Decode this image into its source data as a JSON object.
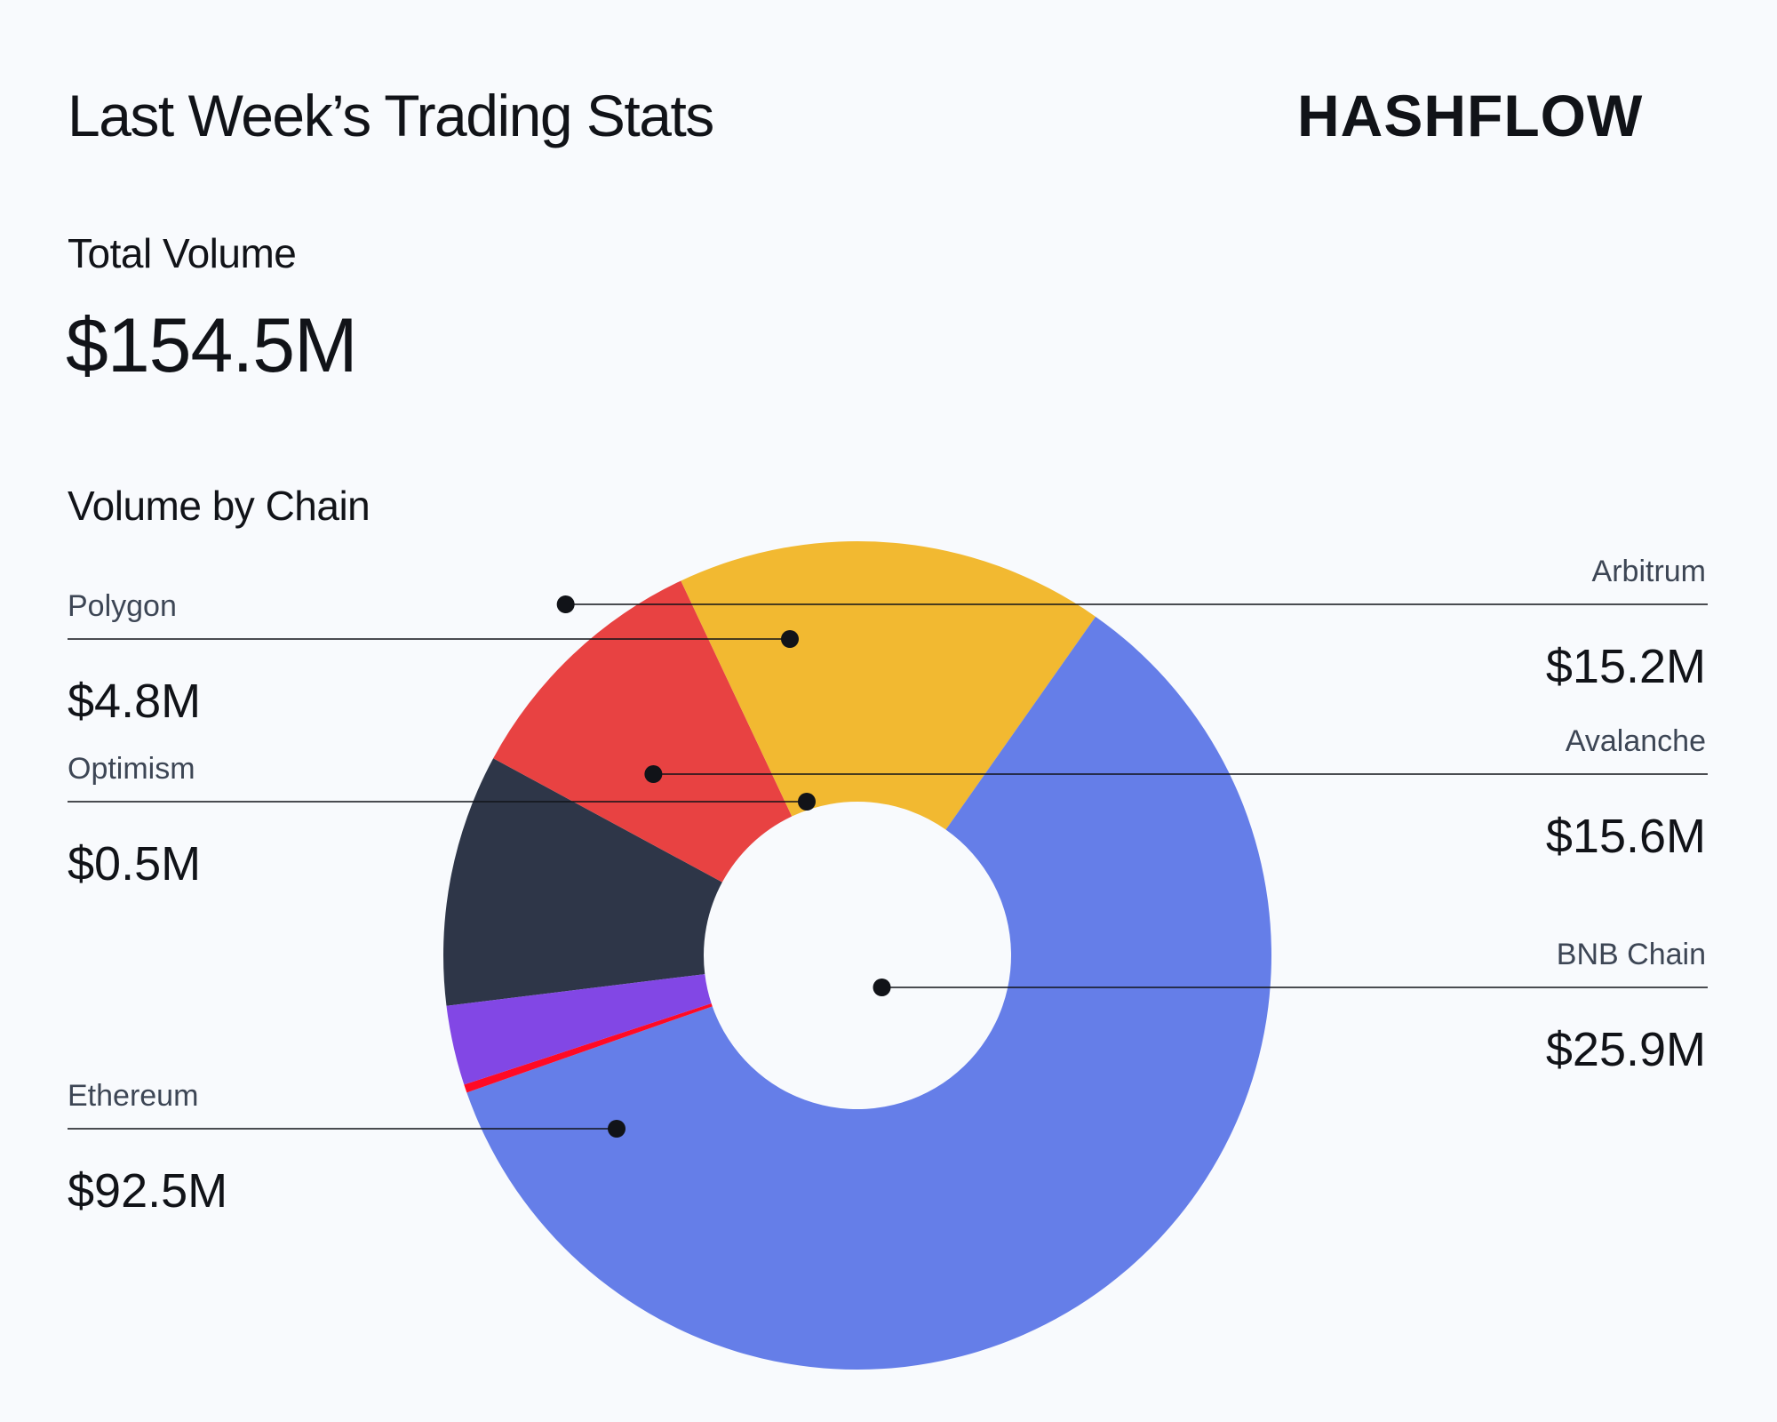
{
  "header": {
    "title": "Last Week’s Trading Stats",
    "brand": "HASHFLOW"
  },
  "total": {
    "label": "Total Volume",
    "value": "$154.5M"
  },
  "section": {
    "label": "Volume by Chain"
  },
  "chart_data": {
    "type": "pie",
    "variant": "donut",
    "title": "Volume by Chain",
    "unit": "$M",
    "slices": [
      {
        "name": "Arbitrum",
        "value": 15.2,
        "label": "$15.2M",
        "color": "#2e3648"
      },
      {
        "name": "Avalanche",
        "value": 15.6,
        "label": "$15.6M",
        "color": "#e84242"
      },
      {
        "name": "BNB Chain",
        "value": 25.9,
        "label": "$25.9M",
        "color": "#f2b931"
      },
      {
        "name": "Ethereum",
        "value": 92.5,
        "label": "$92.5M",
        "color": "#657ee8"
      },
      {
        "name": "Optimism",
        "value": 0.5,
        "label": "$0.5M",
        "color": "#ff0a25"
      },
      {
        "name": "Polygon",
        "value": 4.8,
        "label": "$4.8M",
        "color": "#8247e5"
      }
    ]
  }
}
